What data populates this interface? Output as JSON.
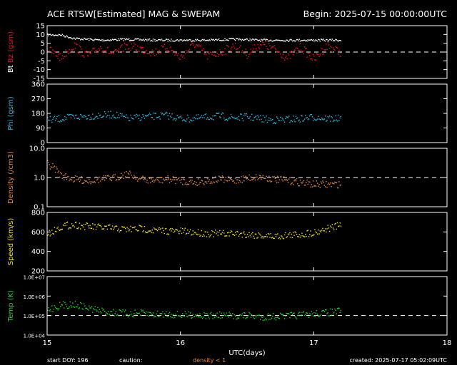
{
  "header": {
    "title": "ACE RTSW[Estimated] MAG & SWEPAM",
    "begin": "Begin: 2025-07-15 00:00:00UTC"
  },
  "footer": {
    "start_doy": "start DOY: 196",
    "caution": "caution:",
    "density_note": "density < 1",
    "created": "created: 2025-07-17 05:02:09UTC",
    "xlabel": "UTC(days)"
  },
  "colors": {
    "bt": "#ffffff",
    "bz": "#e8151b",
    "phi": "#2fb8e0",
    "density": "#e88a3c",
    "speed": "#f2e125",
    "temp": "#22d42a",
    "axis": "#ffffff",
    "text": "#ffffff"
  },
  "chart_data": {
    "type": "scatter",
    "x_axis": {
      "label": "UTC(days)",
      "range": [
        15,
        18
      ],
      "ticks": [
        "15",
        "16",
        "17",
        "18"
      ]
    },
    "data_end_day": 17.2,
    "panels": [
      {
        "id": "bz",
        "ylabel": {
          "prefix": "Bt",
          "mid": "Bz",
          "suffix": "(gsm)"
        },
        "ylim": [
          -15,
          15
        ],
        "ticks": [
          "15",
          "10",
          "5",
          "0",
          "-5",
          "-10",
          "-15"
        ],
        "tick_values": [
          15,
          10,
          5,
          0,
          -5,
          -10,
          -15
        ],
        "dashed_lines": [
          0
        ],
        "series": [
          {
            "name": "Bt",
            "color": "bt",
            "x": [
              15.0,
              15.1,
              15.2,
              15.4,
              15.6,
              15.8,
              16.0,
              16.2,
              16.4,
              16.6,
              16.8,
              17.0,
              17.2
            ],
            "y": [
              10,
              10,
              8,
              7,
              7.5,
              7,
              7,
              7,
              7.5,
              7,
              7,
              7,
              7
            ]
          },
          {
            "name": "Bz",
            "color": "bz",
            "x": [
              15.0,
              15.1,
              15.2,
              15.3,
              15.4,
              15.5,
              15.6,
              15.7,
              15.8,
              15.9,
              16.0,
              16.1,
              16.2,
              16.3,
              16.4,
              16.5,
              16.6,
              16.7,
              16.8,
              16.9,
              17.0,
              17.1,
              17.2
            ],
            "y": [
              2,
              -3,
              4,
              -2,
              3,
              -1,
              4,
              2,
              0,
              3,
              -3,
              5,
              -2,
              0,
              4,
              -1,
              5,
              2,
              -3,
              3,
              -4,
              4,
              0
            ]
          }
        ]
      },
      {
        "id": "phi",
        "ylabel": {
          "mid": "Phi",
          "suffix": "(gsm)"
        },
        "ylim": [
          0,
          360
        ],
        "ticks": [
          "360",
          "270",
          "180",
          "90",
          "0"
        ],
        "tick_values": [
          360,
          270,
          180,
          90,
          0
        ],
        "dashed_lines": [],
        "series": [
          {
            "name": "Phi",
            "color": "phi",
            "x": [
              15.0,
              15.1,
              15.2,
              15.3,
              15.4,
              15.5,
              15.6,
              15.7,
              15.8,
              15.9,
              16.0,
              16.1,
              16.2,
              16.3,
              16.4,
              16.5,
              16.6,
              16.7,
              16.8,
              16.9,
              17.0,
              17.1,
              17.2
            ],
            "y": [
              140,
              150,
              160,
              165,
              170,
              175,
              150,
              160,
              165,
              170,
              150,
              150,
              160,
              165,
              155,
              160,
              150,
              140,
              145,
              150,
              160,
              150,
              150
            ]
          }
        ]
      },
      {
        "id": "density",
        "ylabel": {
          "mid": "Density",
          "suffix": "(/cm3)"
        },
        "ylim": [
          0.1,
          10
        ],
        "log": true,
        "ticks": [
          "10.0",
          "1.0",
          "0.1"
        ],
        "tick_values": [
          10,
          1,
          0.1
        ],
        "dashed_lines": [
          1
        ],
        "series": [
          {
            "name": "Density",
            "color": "density",
            "x": [
              15.0,
              15.05,
              15.1,
              15.2,
              15.3,
              15.4,
              15.5,
              15.6,
              15.7,
              15.8,
              15.9,
              16.0,
              16.1,
              16.2,
              16.3,
              16.4,
              16.5,
              16.6,
              16.7,
              16.8,
              16.9,
              17.0,
              17.1,
              17.2
            ],
            "y": [
              3,
              2.2,
              1.2,
              0.9,
              0.8,
              0.9,
              1.0,
              1.4,
              0.9,
              0.8,
              0.9,
              0.8,
              0.7,
              0.8,
              0.9,
              0.8,
              1.0,
              1.1,
              0.9,
              0.8,
              0.7,
              0.6,
              0.6,
              0.6
            ]
          }
        ]
      },
      {
        "id": "speed",
        "ylabel": {
          "mid": "Speed",
          "suffix": "(km/s)"
        },
        "ylim": [
          200,
          800
        ],
        "ticks": [
          "800",
          "600",
          "400",
          "200"
        ],
        "tick_values": [
          800,
          600,
          400,
          200
        ],
        "dashed_lines": [],
        "series": [
          {
            "name": "Speed",
            "color": "speed",
            "x": [
              15.0,
              15.1,
              15.2,
              15.3,
              15.4,
              15.5,
              15.6,
              15.7,
              15.8,
              15.9,
              16.0,
              16.1,
              16.2,
              16.3,
              16.4,
              16.5,
              16.6,
              16.7,
              16.8,
              16.9,
              17.0,
              17.1,
              17.2
            ],
            "y": [
              580,
              660,
              680,
              660,
              650,
              640,
              630,
              640,
              620,
              615,
              610,
              600,
              590,
              585,
              590,
              580,
              570,
              560,
              570,
              580,
              600,
              640,
              670
            ]
          }
        ]
      },
      {
        "id": "temp",
        "ylabel": {
          "mid": "Temp",
          "suffix": "(K)"
        },
        "ylim": [
          10000,
          10000000
        ],
        "log": true,
        "ticks": [
          "1.0E+07",
          "1.0E+06",
          "1.0E+05",
          "1.0E+04"
        ],
        "tick_values": [
          10000000,
          1000000,
          100000,
          10000
        ],
        "dashed_lines": [
          100000
        ],
        "series": [
          {
            "name": "Temp",
            "color": "temp",
            "x": [
              15.0,
              15.1,
              15.2,
              15.3,
              15.4,
              15.5,
              15.6,
              15.7,
              15.8,
              15.9,
              16.0,
              16.1,
              16.2,
              16.3,
              16.4,
              16.5,
              16.6,
              16.7,
              16.8,
              16.9,
              17.0,
              17.1,
              17.2
            ],
            "y": [
              200000,
              350000,
              400000,
              260000,
              180000,
              150000,
              130000,
              140000,
              120000,
              130000,
              110000,
              120000,
              100000,
              110000,
              100000,
              105000,
              90000,
              95000,
              100000,
              110000,
              130000,
              150000,
              180000
            ]
          }
        ]
      }
    ]
  }
}
